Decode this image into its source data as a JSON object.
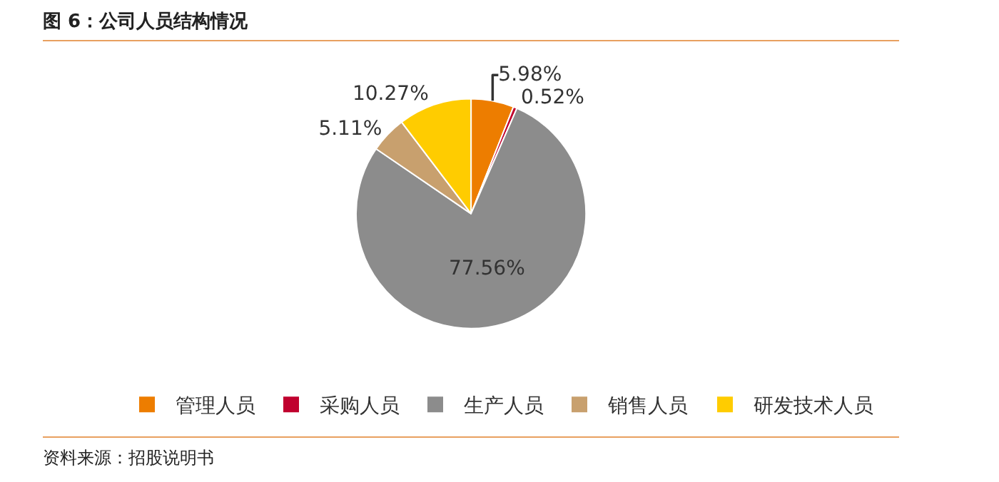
{
  "chart_data": {
    "type": "pie",
    "title": "图 6：公司人员结构情况",
    "categories": [
      "管理人员",
      "采购人员",
      "生产人员",
      "销售人员",
      "研发技术人员"
    ],
    "values": [
      5.98,
      0.52,
      77.56,
      5.11,
      10.27
    ],
    "value_labels": [
      "5.98%",
      "0.52%",
      "77.56%",
      "5.11%",
      "10.27%"
    ],
    "colors": [
      "#ed7d00",
      "#c0002e",
      "#8c8c8c",
      "#c8a06e",
      "#ffcc00"
    ],
    "legend": "bottom",
    "annotations": [
      "资料来源：招股说明书"
    ]
  }
}
